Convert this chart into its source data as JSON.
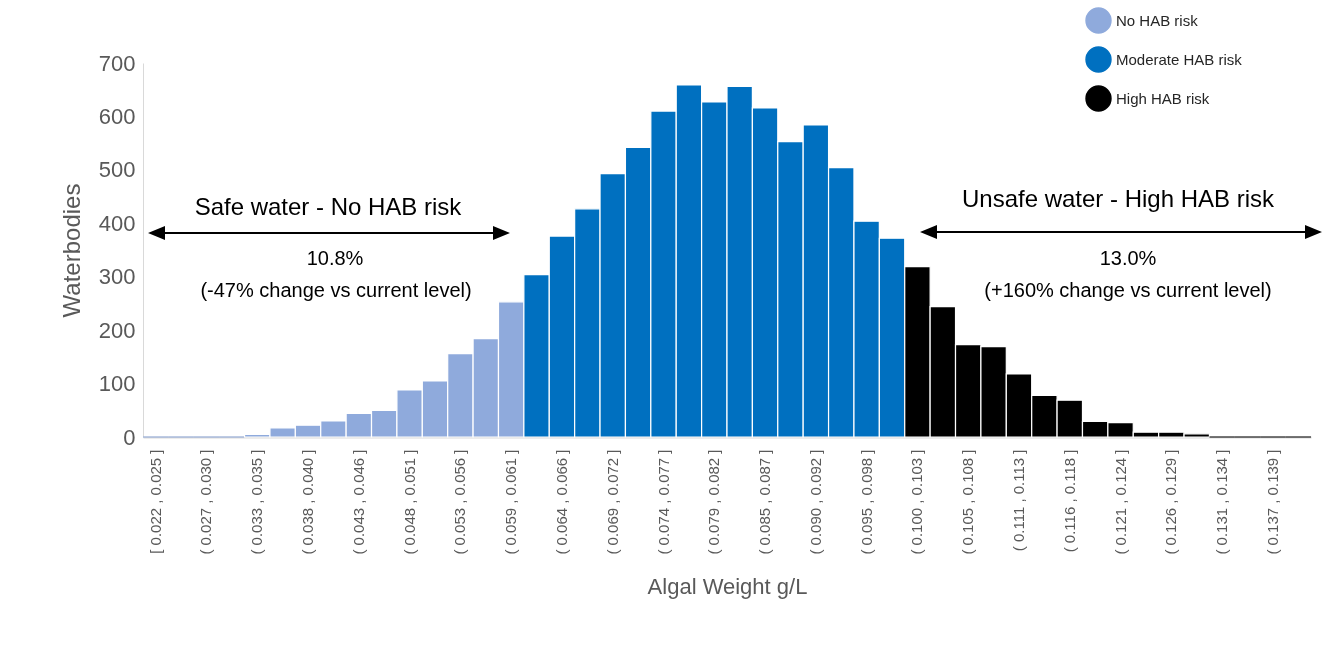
{
  "chart_data": {
    "type": "bar",
    "categories": [
      "[ 0.022 ,  0.025 ]",
      null,
      "( 0.027 ,  0.030 ]",
      null,
      "( 0.033 ,  0.035 ]",
      null,
      "( 0.038 ,  0.040 ]",
      null,
      "( 0.043 ,  0.046 ]",
      null,
      "( 0.048 ,  0.051 ]",
      null,
      "( 0.053 ,  0.056 ]",
      null,
      "( 0.059 ,  0.061 ]",
      null,
      "( 0.064 ,  0.066 ]",
      null,
      "( 0.069 ,  0.072 ]",
      null,
      "( 0.074 ,  0.077 ]",
      null,
      "( 0.079 ,  0.082 ]",
      null,
      "( 0.085 ,  0.087 ]",
      null,
      "( 0.090 ,  0.092 ]",
      null,
      "( 0.095 ,  0.098 ]",
      null,
      "( 0.100 ,  0.103 ]",
      null,
      "( 0.105 ,  0.108 ]",
      null,
      "( 0.111 ,  0.113 ]",
      null,
      "( 0.116 ,  0.118 ]",
      null,
      "( 0.121 ,  0.124 ]",
      null,
      "( 0.126 ,  0.129 ]",
      null,
      "( 0.131 ,  0.134 ]",
      null,
      "( 0.137 ,  0.139 ]",
      null
    ],
    "series": [
      {
        "name": "No HAB risk",
        "color": "#8faadc",
        "values": [
          0,
          0,
          0,
          0,
          5,
          17,
          22,
          30,
          44,
          50,
          88,
          105,
          156,
          184,
          253,
          null,
          null,
          null,
          null,
          null,
          null,
          null,
          null,
          null,
          null,
          null,
          null,
          null,
          null,
          null,
          null,
          null,
          null,
          null,
          null,
          null,
          null,
          null,
          null,
          null,
          null,
          null,
          null,
          null,
          null,
          null
        ]
      },
      {
        "name": "Moderate HAB risk",
        "color": "#0070c0",
        "values": [
          null,
          null,
          null,
          null,
          null,
          null,
          null,
          null,
          null,
          null,
          null,
          null,
          null,
          null,
          null,
          304,
          376,
          427,
          493,
          542,
          610,
          659,
          627,
          656,
          616,
          553,
          584,
          504,
          404,
          372,
          null,
          null,
          null,
          null,
          null,
          null,
          null,
          null,
          null,
          null,
          null,
          null,
          null,
          null,
          null,
          null
        ]
      },
      {
        "name": "High HAB risk",
        "color": "#000000",
        "values": [
          null,
          null,
          null,
          null,
          null,
          null,
          null,
          null,
          null,
          null,
          null,
          null,
          null,
          null,
          null,
          null,
          null,
          null,
          null,
          null,
          null,
          null,
          null,
          null,
          null,
          null,
          null,
          null,
          null,
          null,
          319,
          244,
          173,
          169,
          118,
          78,
          69,
          29,
          27,
          9,
          9,
          6,
          0,
          0,
          0,
          0
        ]
      }
    ],
    "xlabel": "Algal Weight g/L",
    "ylabel": "Waterbodies",
    "ylim": [
      0,
      700
    ],
    "yticks": [
      0,
      100,
      200,
      300,
      400,
      500,
      600,
      700
    ],
    "grid": false,
    "legend": "top right",
    "annotations": [
      "Safe water - No HAB risk",
      "10.8%",
      "(-47% change vs current level)",
      "Unsafe water - High HAB risk",
      "13.0%",
      "(+160% change vs current level)"
    ]
  }
}
